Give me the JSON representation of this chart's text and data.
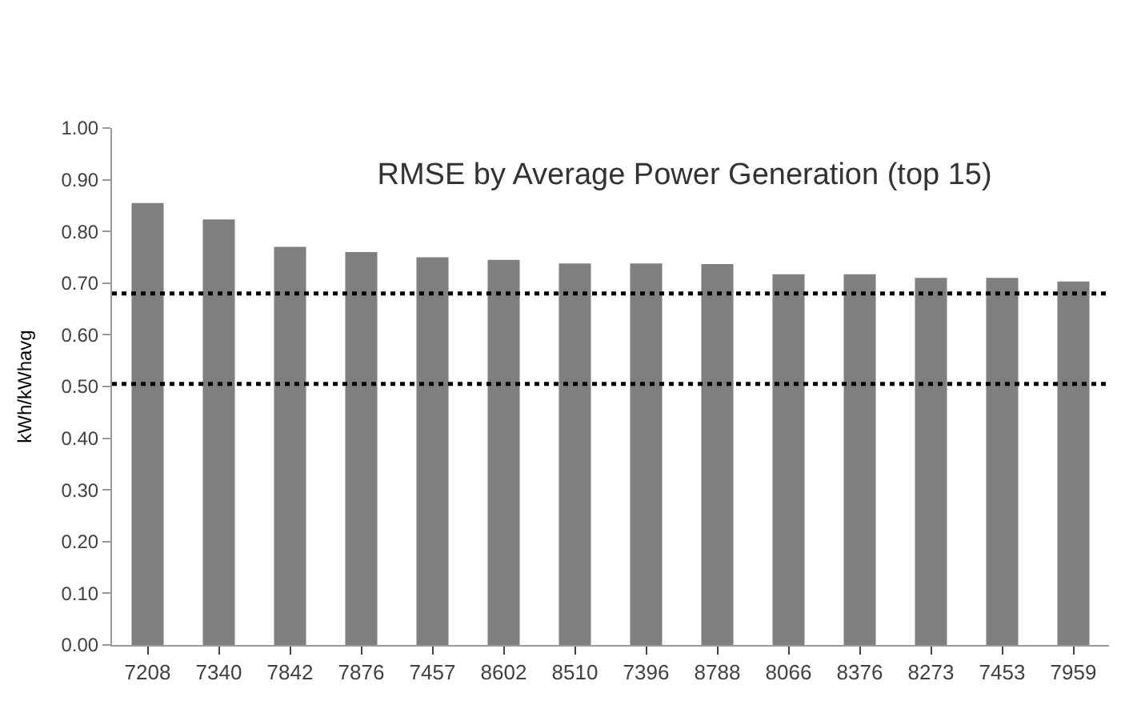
{
  "chart_data": {
    "type": "bar",
    "title": "RMSE by Average Power Generation (top 15)",
    "ylabel": "kWh/kWhavg",
    "categories": [
      "7208",
      "7340",
      "7842",
      "7876",
      "7457",
      "8602",
      "8510",
      "7396",
      "8788",
      "8066",
      "8376",
      "8273",
      "7453",
      "7959"
    ],
    "values": [
      0.855,
      0.823,
      0.77,
      0.76,
      0.75,
      0.745,
      0.738,
      0.738,
      0.737,
      0.717,
      0.717,
      0.71,
      0.71,
      0.703
    ],
    "color": "#7f7f7f",
    "ylim": [
      0,
      1
    ],
    "yticks": [
      {
        "value": 0,
        "label": "0.00"
      },
      {
        "value": 0.1,
        "label": "0.10"
      },
      {
        "value": 0.2,
        "label": "0.20"
      },
      {
        "value": 0.3,
        "label": "0.30"
      },
      {
        "value": 0.4,
        "label": "0.40"
      },
      {
        "value": 0.5,
        "label": "0.50"
      },
      {
        "value": 0.6,
        "label": "0.60"
      },
      {
        "value": 0.7,
        "label": "0.70"
      },
      {
        "value": 0.8,
        "label": "0.80"
      },
      {
        "value": 0.9,
        "label": "0.90"
      },
      {
        "value": 1,
        "label": "1.00"
      }
    ],
    "ref_lines": [
      {
        "axis": "y",
        "value": 0.68,
        "color": "#000000",
        "line_style": "dotted"
      },
      {
        "axis": "y",
        "value": 0.505,
        "color": "#000000",
        "line_style": "dotted"
      }
    ]
  }
}
